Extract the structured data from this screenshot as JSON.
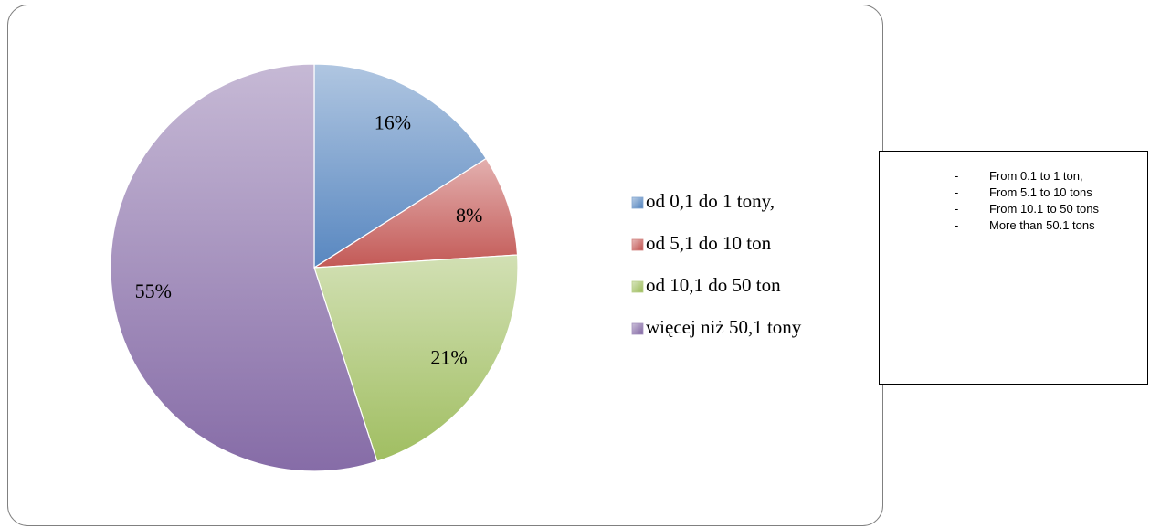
{
  "chart_data": {
    "type": "pie",
    "categories": [
      "od 0,1 do 1 tony,",
      "od 5,1 do 10 ton",
      "od 10,1 do 50 ton",
      "więcej niż 50,1 tony"
    ],
    "values": [
      16,
      8,
      21,
      55
    ],
    "value_labels": [
      "16%",
      "8%",
      "21%",
      "55%"
    ],
    "colors": [
      "#4f81bd",
      "#c0504d",
      "#9bbb59",
      "#8064a2"
    ],
    "legend": "right"
  },
  "note_box": {
    "lines": [
      "From 0.1 to 1 ton,",
      "From 5.1 to 10 tons",
      "From 10.1 to 50 tons",
      "More than 50.1 tons"
    ]
  }
}
